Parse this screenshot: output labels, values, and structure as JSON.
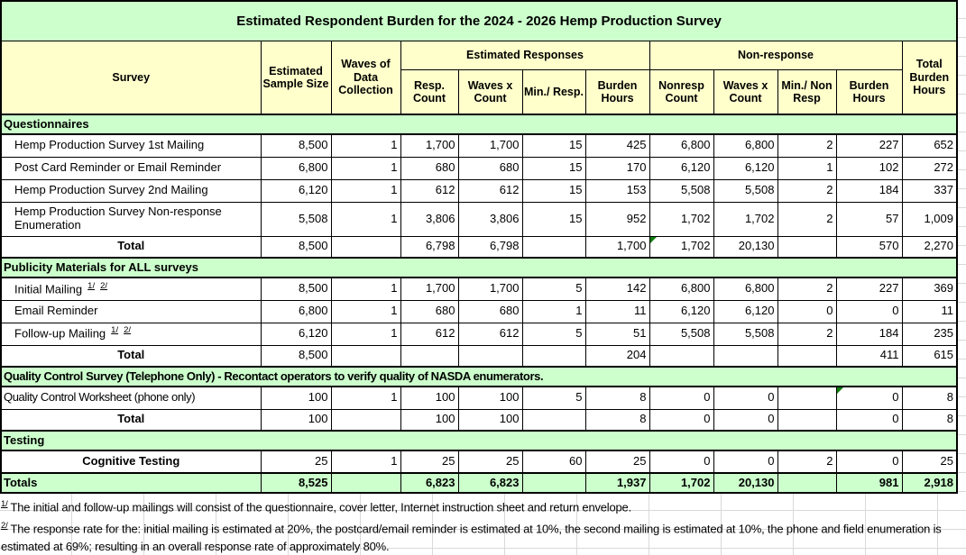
{
  "title": "Estimated Respondent Burden for the 2024 - 2026 Hemp Production Survey",
  "colors": {
    "title_bg": "#ccffcc",
    "header_bg": "#ffffcc",
    "section_bg": "#ccffcc",
    "grand_total_bg": "#ccffcc",
    "border": "#000000",
    "error_indicator": "#0f7d0f",
    "gridline": "#d9d9d9"
  },
  "header": {
    "survey": "Survey",
    "sample_size": "Estimated Sample Size",
    "waves": "Waves of Data Collection",
    "est_group": "Estimated Responses",
    "nonresp_group": "Non-response",
    "sub": [
      "Resp. Count",
      "Waves x Count",
      "Min./ Resp.",
      "Burden Hours",
      "Nonresp Count",
      "Waves x Count",
      "Min./ Non Resp",
      "Burden Hours"
    ],
    "total": "Total Burden Hours"
  },
  "rows": [
    {
      "type": "section",
      "label": "Questionnaires"
    },
    {
      "type": "data",
      "label": "Hemp Production Survey 1st Mailing",
      "cells": [
        "8,500",
        "1",
        "1,700",
        "1,700",
        "15",
        "425",
        "6,800",
        "6,800",
        "2",
        "227",
        "652"
      ]
    },
    {
      "type": "data",
      "label": "Post Card Reminder or Email Reminder",
      "cells": [
        "6,800",
        "1",
        "680",
        "680",
        "15",
        "170",
        "6,120",
        "6,120",
        "1",
        "102",
        "272"
      ]
    },
    {
      "type": "data",
      "label": "Hemp Production Survey 2nd Mailing",
      "cells": [
        "6,120",
        "1",
        "612",
        "612",
        "15",
        "153",
        "5,508",
        "5,508",
        "2",
        "184",
        "337"
      ]
    },
    {
      "type": "data",
      "tall": true,
      "label": "Hemp Production Survey Non-response Enumeration",
      "cells": [
        "5,508",
        "1",
        "3,806",
        "3,806",
        "15",
        "952",
        "1,702",
        "1,702",
        "2",
        "57",
        "1,009"
      ]
    },
    {
      "type": "total",
      "label": "Total",
      "indicator_col": 6,
      "cells": [
        "8,500",
        "",
        "6,798",
        "6,798",
        "",
        "1,700",
        "1,702",
        "20,130",
        "",
        "570",
        "2,270"
      ]
    },
    {
      "type": "section",
      "label": "Publicity Materials for ALL surveys"
    },
    {
      "type": "data",
      "label": "Initial Mailing",
      "marks": [
        "1/",
        "2/"
      ],
      "cells": [
        "8,500",
        "1",
        "1,700",
        "1,700",
        "5",
        "142",
        "6,800",
        "6,800",
        "2",
        "227",
        "369"
      ]
    },
    {
      "type": "data",
      "label": "Email Reminder",
      "cells": [
        "6,800",
        "1",
        "680",
        "680",
        "1",
        "11",
        "6,120",
        "6,120",
        "0",
        "0",
        "11"
      ]
    },
    {
      "type": "data",
      "label": "Follow-up Mailing",
      "marks": [
        "1/",
        "2/"
      ],
      "cells": [
        "6,120",
        "1",
        "612",
        "612",
        "5",
        "51",
        "5,508",
        "5,508",
        "2",
        "184",
        "235"
      ]
    },
    {
      "type": "total",
      "label": "Total",
      "cells": [
        "8,500",
        "",
        "",
        "",
        "",
        "204",
        "",
        "",
        "",
        "411",
        "615"
      ]
    },
    {
      "type": "section",
      "label": "Quality Control Survey (Telephone Only) - Recontact operators to verify quality of NASDA enumerators.",
      "narrow": true
    },
    {
      "type": "data",
      "label": "Quality Control Worksheet (phone only)",
      "label_style": "flush",
      "indicator_col": 9,
      "cells": [
        "100",
        "1",
        "100",
        "100",
        "5",
        "8",
        "0",
        "0",
        "",
        "0",
        "8"
      ]
    },
    {
      "type": "total",
      "label": "Total",
      "cells": [
        "100",
        "",
        "100",
        "100",
        "",
        "8",
        "0",
        "0",
        "",
        "0",
        "8"
      ]
    },
    {
      "type": "section",
      "label": "Testing"
    },
    {
      "type": "data",
      "label": "Cognitive Testing",
      "label_style": "center-bold",
      "cells": [
        "25",
        "1",
        "25",
        "25",
        "60",
        "25",
        "0",
        "0",
        "2",
        "0",
        "25"
      ]
    },
    {
      "type": "grand",
      "label": "Totals",
      "cells": [
        "8,525",
        "",
        "6,823",
        "6,823",
        "",
        "1,937",
        "1,702",
        "20,130",
        "",
        "981",
        "2,918"
      ]
    }
  ],
  "footnotes": [
    {
      "mark": "1/",
      "text": "The initial and follow-up mailings will consist of the questionnaire, cover letter, Internet instruction sheet and return envelope."
    },
    {
      "mark": "2/",
      "text": "The response rate for the: initial mailing is estimated at 20%, the postcard/email reminder is estimated at 10%, the second mailing is estimated at 10%, the phone and field enumeration is estimated at 69%; resulting in an overall response rate of approximately 80%."
    }
  ]
}
